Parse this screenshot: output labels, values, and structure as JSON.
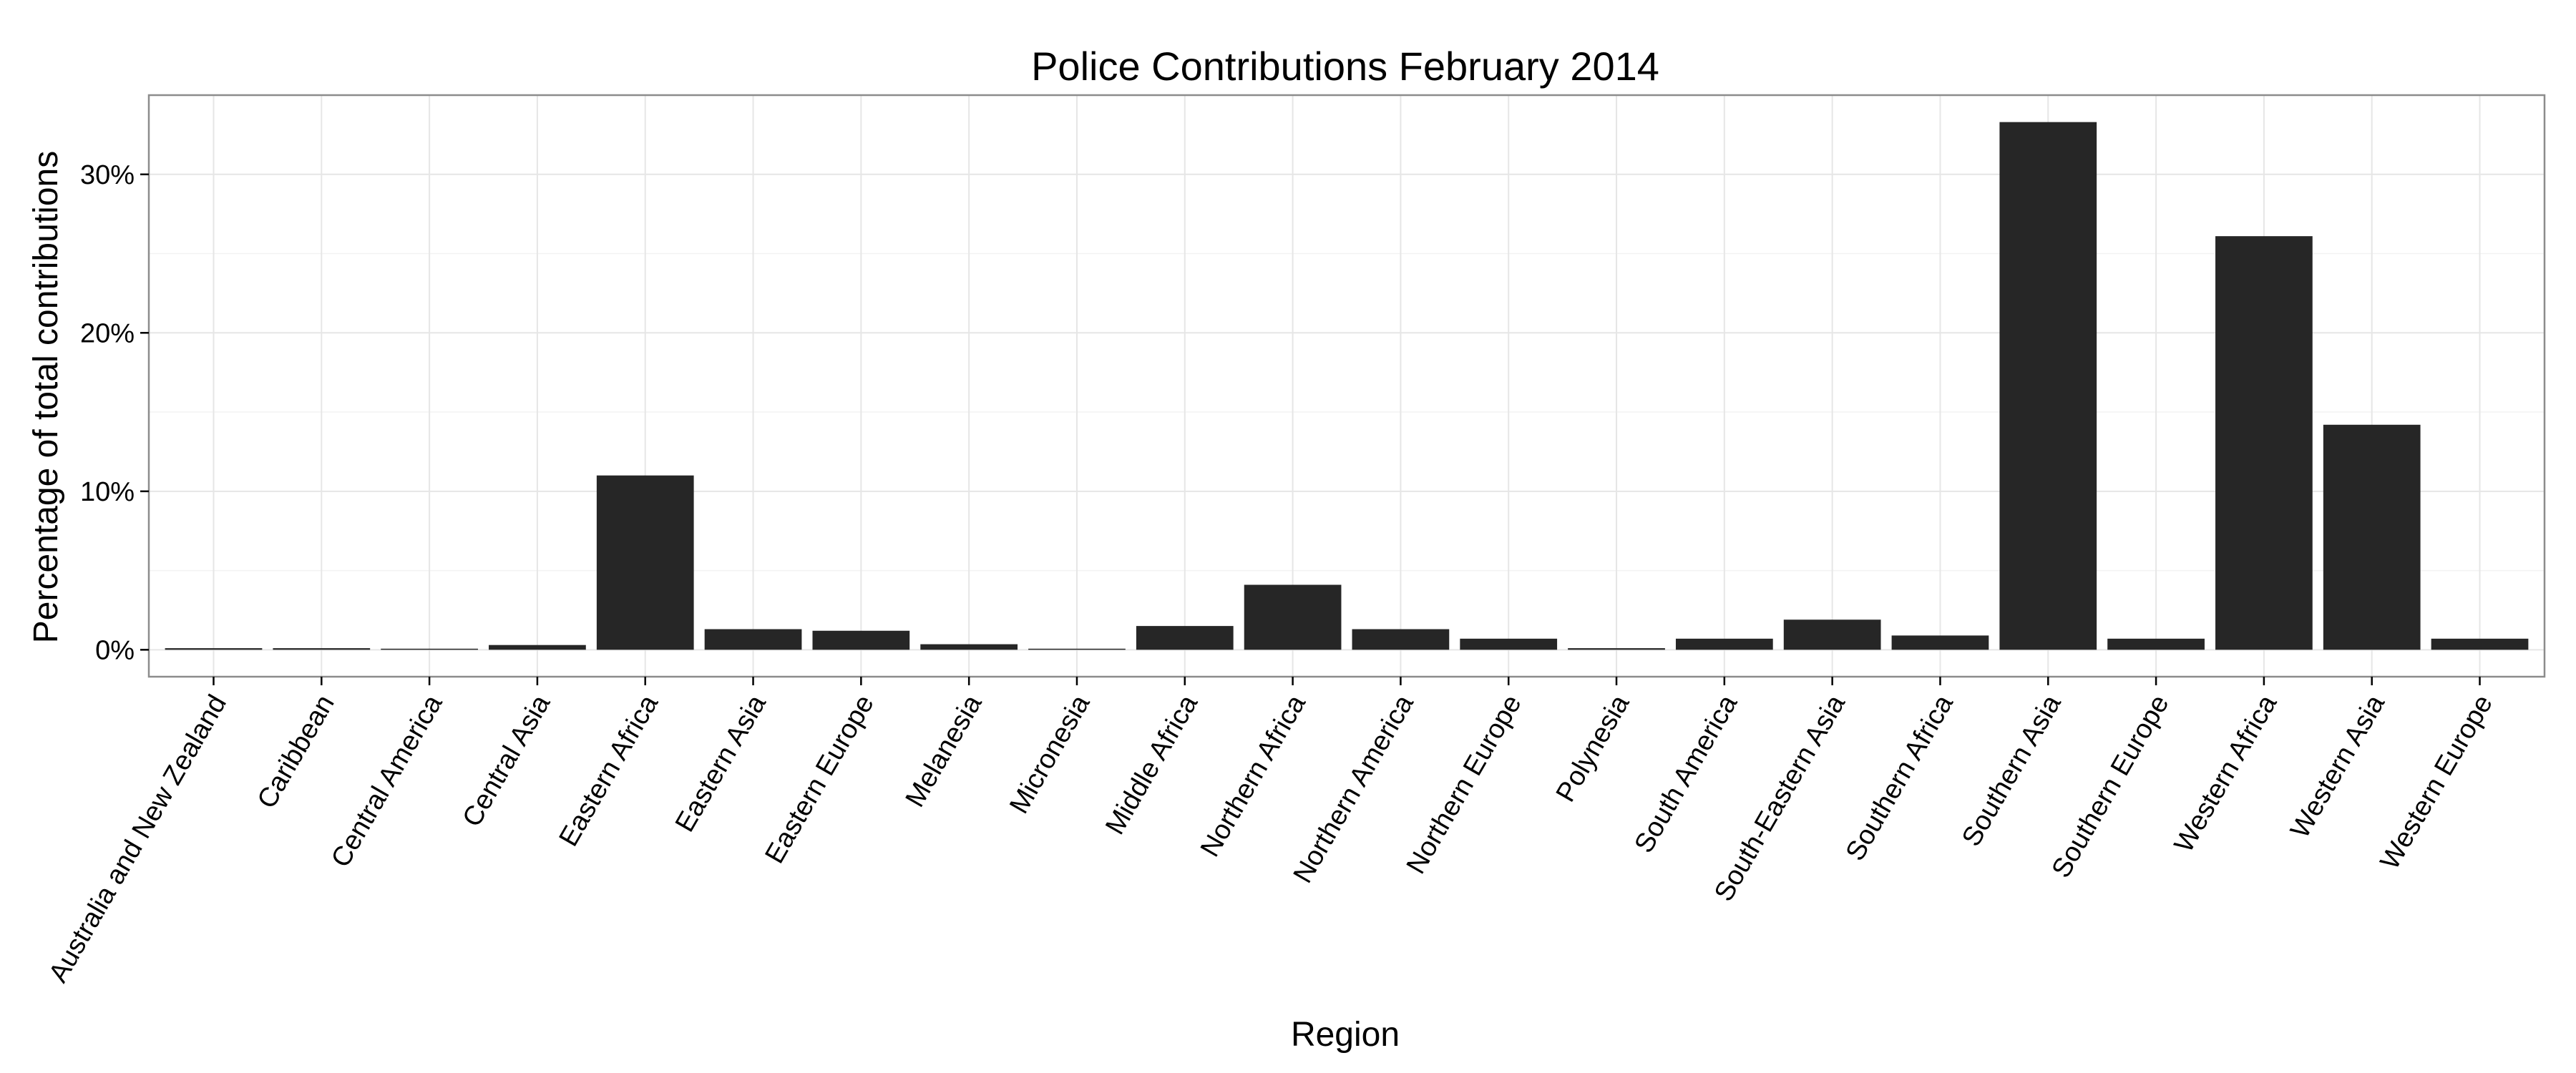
{
  "chart_data": {
    "type": "bar",
    "title": "Police Contributions February 2014",
    "xlabel": "Region",
    "ylabel": "Percentage of total contributions",
    "categories": [
      "Australia and New Zealand",
      "Caribbean",
      "Central America",
      "Central Asia",
      "Eastern Africa",
      "Eastern Asia",
      "Eastern Europe",
      "Melanesia",
      "Micronesia",
      "Middle Africa",
      "Northern Africa",
      "Northern America",
      "Northern Europe",
      "Polynesia",
      "South America",
      "South-Eastern Asia",
      "Southern Africa",
      "Southern Asia",
      "Southern Europe",
      "Western Africa",
      "Western Asia",
      "Western Europe"
    ],
    "values": [
      0.1,
      0.1,
      0.05,
      0.3,
      11.0,
      1.3,
      1.2,
      0.35,
      0.05,
      1.5,
      4.1,
      1.3,
      0.7,
      0.1,
      0.7,
      1.9,
      0.9,
      33.3,
      0.7,
      26.1,
      14.2,
      0.7
    ],
    "value_unit": "percent",
    "ylim": [
      -1.7,
      35.0
    ],
    "y_ticks": [
      0,
      10,
      20,
      30
    ],
    "y_tick_labels": [
      "0%",
      "10%",
      "20%",
      "30%"
    ],
    "bar_color": "#262626",
    "grid": true,
    "legend": "none"
  }
}
